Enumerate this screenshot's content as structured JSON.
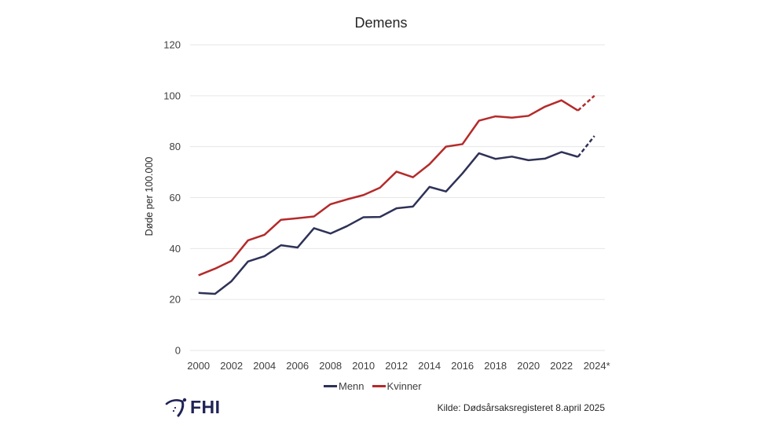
{
  "chart_data": {
    "type": "line",
    "title": "Demens",
    "xlabel": "",
    "ylabel": "Døde per 100.000",
    "x": [
      2000,
      2001,
      2002,
      2003,
      2004,
      2005,
      2006,
      2007,
      2008,
      2009,
      2010,
      2011,
      2012,
      2013,
      2014,
      2015,
      2016,
      2017,
      2018,
      2019,
      2020,
      2021,
      2022,
      2023,
      2024
    ],
    "x_tick_labels": [
      "2000",
      "2002",
      "2004",
      "2006",
      "2008",
      "2010",
      "2012",
      "2014",
      "2016",
      "2018",
      "2020",
      "2022",
      "2024*"
    ],
    "x_tick_values": [
      2000,
      2002,
      2004,
      2006,
      2008,
      2010,
      2012,
      2014,
      2016,
      2018,
      2020,
      2022,
      2024
    ],
    "ylim": [
      0,
      120
    ],
    "y_ticks": [
      0,
      20,
      40,
      60,
      80,
      100,
      120
    ],
    "y_tick_labels": [
      "0",
      "20",
      "40",
      "60",
      "80",
      "100",
      "120"
    ],
    "grid": true,
    "legend_position": "bottom",
    "dashed_from": 2023,
    "series": [
      {
        "name": "Menn",
        "color": "#2e3257",
        "values": [
          22.6,
          22.2,
          27.2,
          34.9,
          37.0,
          41.3,
          40.4,
          48.0,
          45.9,
          48.8,
          52.3,
          52.4,
          55.8,
          56.5,
          64.2,
          62.4,
          69.5,
          77.4,
          75.2,
          76.1,
          74.7,
          75.3,
          77.9,
          76.0,
          84.2
        ]
      },
      {
        "name": "Kvinner",
        "color": "#b52a2a",
        "values": [
          29.5,
          32.1,
          35.2,
          43.2,
          45.4,
          51.3,
          51.9,
          52.6,
          57.4,
          59.3,
          61.0,
          63.9,
          70.2,
          68.0,
          73.1,
          80.0,
          81.0,
          90.2,
          91.9,
          91.4,
          92.1,
          95.7,
          98.2,
          94.2,
          100.0
        ]
      }
    ]
  },
  "footer": {
    "logo_text": "FHI",
    "source": "Kilde: Dødsårsaksregisteret 8.april 2025"
  },
  "colors": {
    "grid": "#e6e6e6",
    "logo": "#1f2356"
  }
}
